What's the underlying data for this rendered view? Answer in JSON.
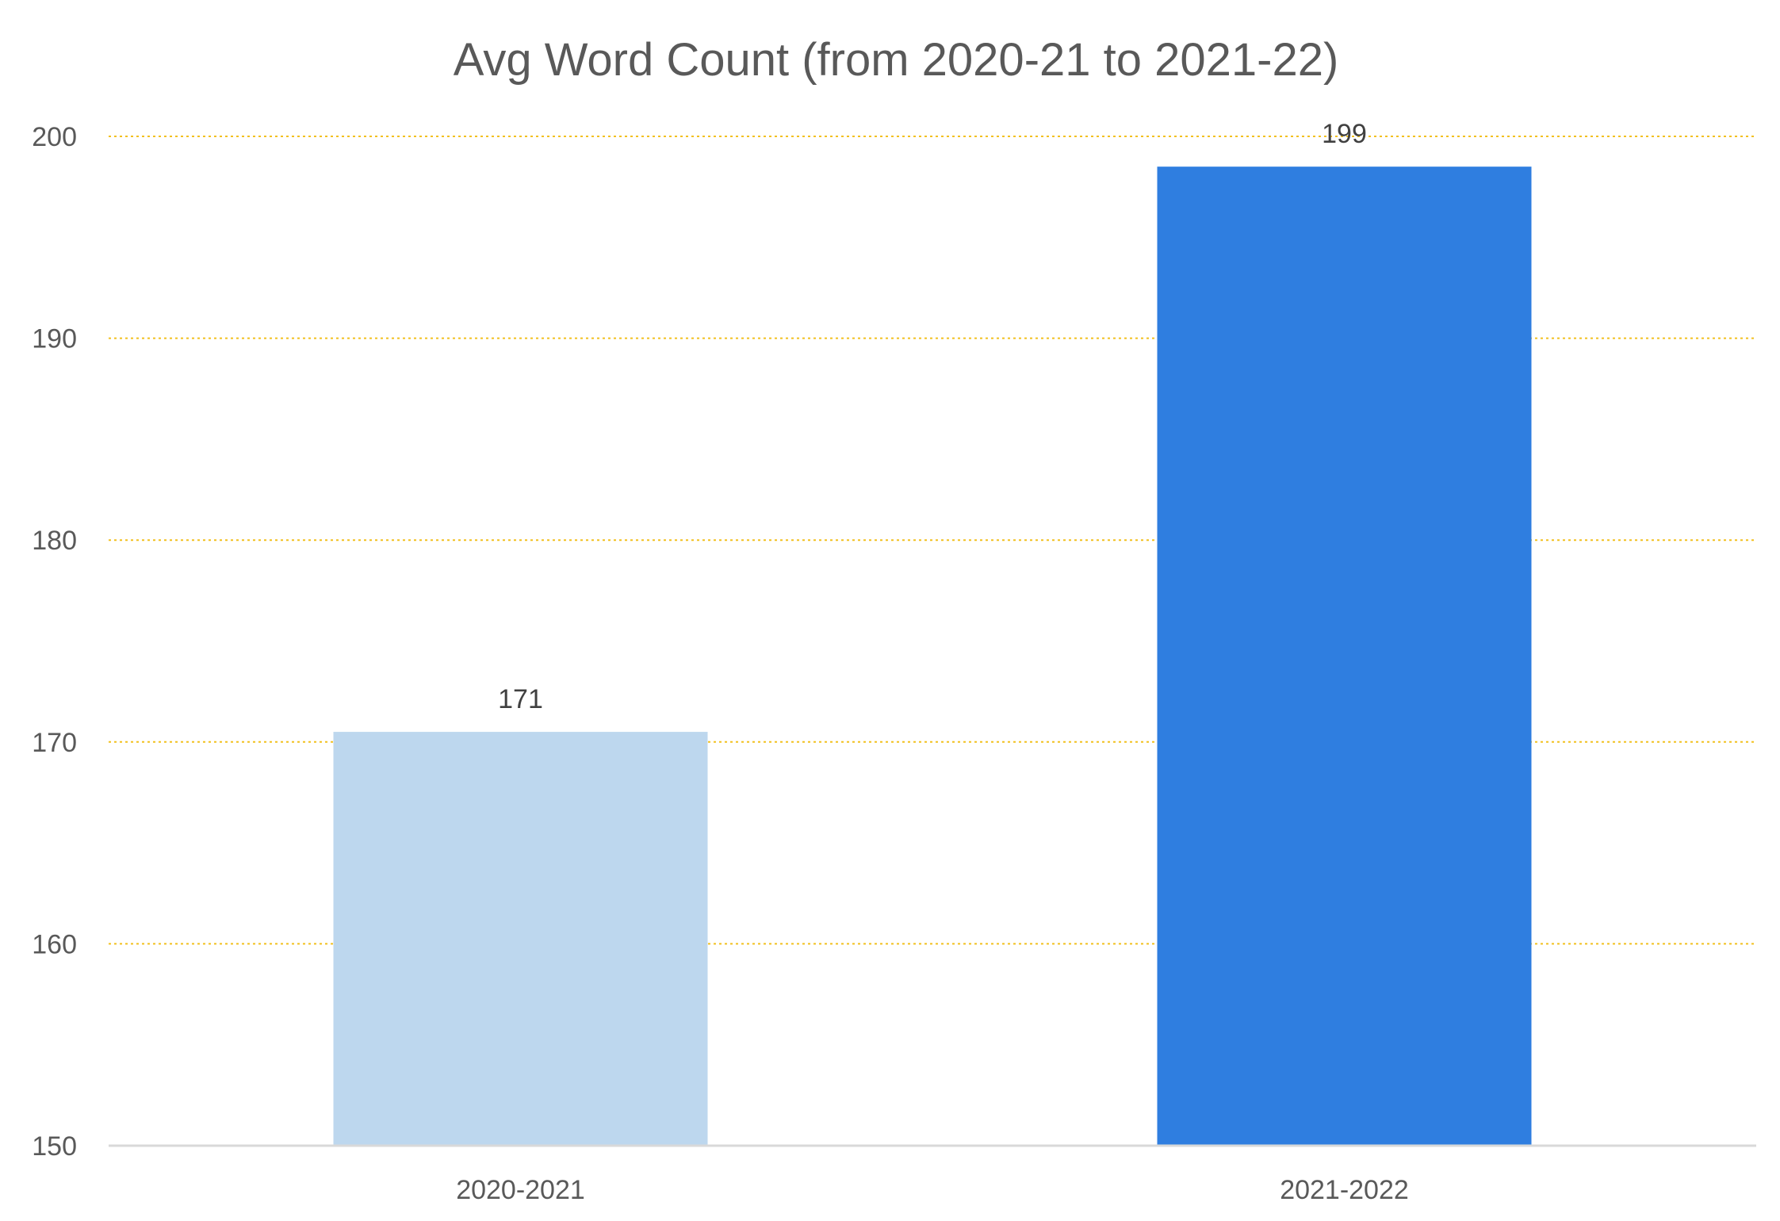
{
  "chart_data": {
    "type": "bar",
    "title": "Avg Word Count (from 2020-21 to 2021-22)",
    "categories": [
      "2020-2021",
      "2021-2022"
    ],
    "values": [
      170.5,
      198.5
    ],
    "data_labels": [
      "171",
      "199"
    ],
    "bar_colors": [
      "#BDD7EE",
      "#2F7EE0"
    ],
    "ylim": [
      150,
      200
    ],
    "yticks": [
      150,
      160,
      170,
      180,
      190,
      200
    ],
    "grid": true,
    "grid_color": "#F2C01E",
    "axis_color": "#D9D9D9",
    "legend": "none"
  }
}
